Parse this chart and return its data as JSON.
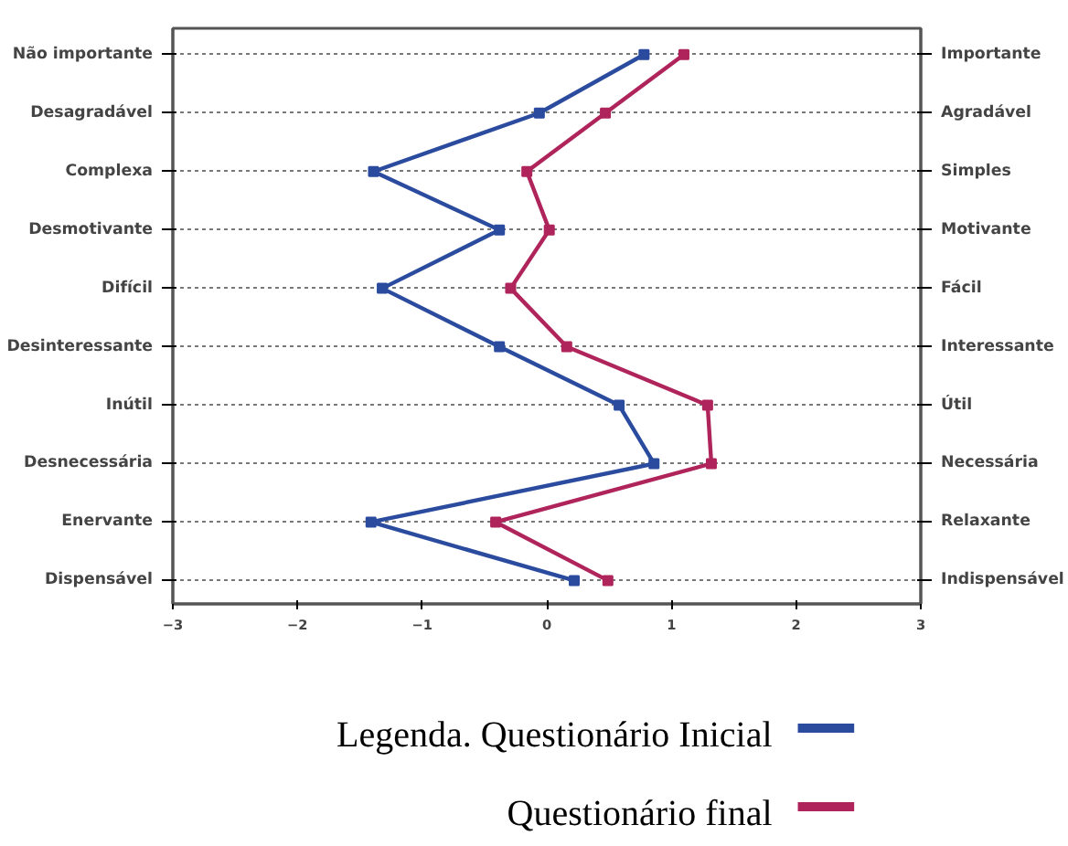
{
  "chart_data": {
    "type": "line",
    "orientation": "horizontal",
    "legend_title": "Legenda.",
    "categories": [
      "Não importante",
      "Desagradável",
      "Complexa",
      "Desmotivante",
      "Difícil",
      "Desinteressante",
      "Inútil",
      "Desnecessária",
      "Enervante",
      "Dispensável"
    ],
    "y2_categories": [
      "Importante",
      "Agradável",
      "Simples",
      "Motivante",
      "Fácil",
      "Interessante",
      "Útil",
      "Necessária",
      "Relaxante",
      "Indispensável"
    ],
    "series": [
      {
        "name": "Questionário Inicial",
        "color": "#2a4b9e",
        "values": [
          0.78,
          -0.06,
          -1.39,
          -0.38,
          -1.32,
          -0.38,
          0.58,
          0.86,
          -1.41,
          0.22
        ]
      },
      {
        "name": "Questionário final",
        "color": "#b0245c",
        "values": [
          1.1,
          0.47,
          -0.16,
          0.02,
          -0.29,
          0.16,
          1.29,
          1.32,
          -0.41,
          0.49
        ]
      }
    ],
    "xlim": [
      -3,
      3
    ],
    "xticks": [
      -3,
      -2,
      -1,
      0,
      1,
      2,
      3
    ],
    "grid": "y",
    "marker": "square",
    "line_style": "solid",
    "legend": "bottom"
  }
}
